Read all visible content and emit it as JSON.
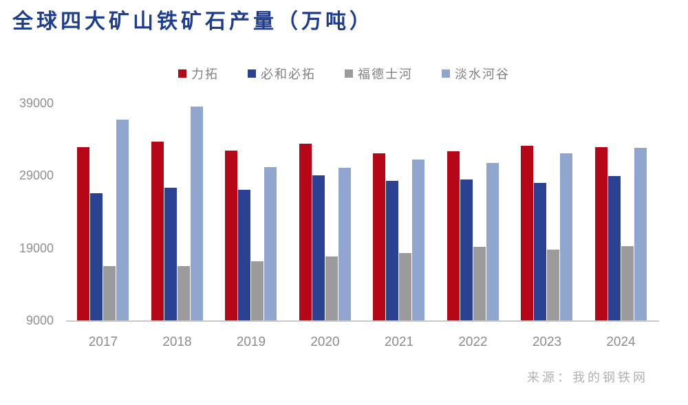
{
  "title": "全球四大矿山铁矿石产量（万吨）",
  "source_note": "来源：我的钢铁网",
  "colors": {
    "title_text": "#1f3d8f",
    "axis_line": "#c9c9c9",
    "axis_text": "#8c8c8c",
    "legend_text": "#7f7f7f",
    "source_text": "#b2b0b0",
    "background": "#ffffff"
  },
  "chart_data": {
    "type": "bar",
    "title": "全球四大矿山铁矿石产量（万吨）",
    "xlabel": "",
    "ylabel": "",
    "ylim": [
      9000,
      39000
    ],
    "yticks": [
      9000,
      19000,
      29000,
      39000
    ],
    "grid": false,
    "legend_position": "top",
    "categories": [
      "2017",
      "2018",
      "2019",
      "2020",
      "2021",
      "2022",
      "2023",
      "2024"
    ],
    "series": [
      {
        "name": "力拓",
        "key": "rio-tinto",
        "color": "#b60718",
        "values": [
          32900,
          33700,
          32500,
          33400,
          32100,
          32400,
          33100,
          32900
        ]
      },
      {
        "name": "必和必拓",
        "key": "bhp",
        "color": "#2a4291",
        "values": [
          26600,
          27300,
          27000,
          29000,
          28300,
          28500,
          28000,
          28900
        ]
      },
      {
        "name": "福德士河",
        "key": "fortescue",
        "color": "#9b9b9b",
        "values": [
          16500,
          16500,
          17200,
          17800,
          18300,
          19200,
          18800,
          19300
        ]
      },
      {
        "name": "淡水河谷",
        "key": "vale",
        "color": "#91a6cf",
        "values": [
          36700,
          38500,
          30200,
          30100,
          31200,
          30700,
          32100,
          32800
        ]
      }
    ],
    "source_note": "来源：我的钢铁网"
  }
}
